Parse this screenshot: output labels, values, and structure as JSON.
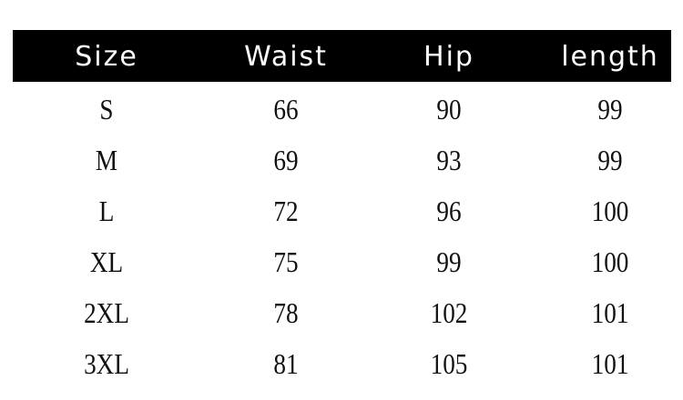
{
  "table": {
    "headers": [
      "Size",
      "Waist",
      "Hip",
      "length"
    ],
    "rows": [
      [
        "S",
        "66",
        "90",
        "99"
      ],
      [
        "M",
        "69",
        "93",
        "99"
      ],
      [
        "L",
        "72",
        "96",
        "100"
      ],
      [
        "XL",
        "75",
        "99",
        "100"
      ],
      [
        "2XL",
        "78",
        "102",
        "101"
      ],
      [
        "3XL",
        "81",
        "105",
        "101"
      ]
    ]
  },
  "colors": {
    "header_bg": "#000000",
    "header_text": "#ffffff",
    "body_text": "#111111"
  }
}
